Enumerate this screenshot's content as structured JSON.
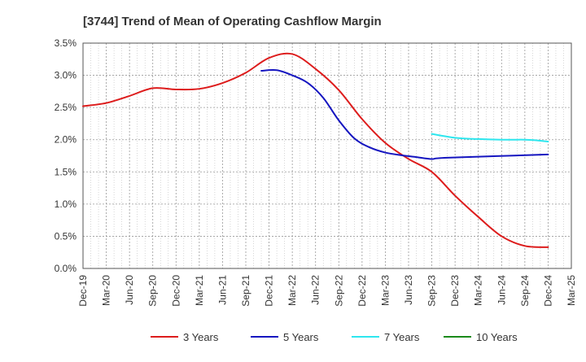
{
  "chart_data": {
    "type": "line",
    "title": "[3744]  Trend of Mean of Operating Cashflow Margin",
    "xlabel": "",
    "ylabel": "",
    "ylim": [
      0,
      3.5
    ],
    "y_ticks": [
      0,
      0.5,
      1.0,
      1.5,
      2.0,
      2.5,
      3.0,
      3.5
    ],
    "y_tick_labels": [
      "0.0%",
      "0.5%",
      "1.0%",
      "1.5%",
      "2.0%",
      "2.5%",
      "3.0%",
      "3.5%"
    ],
    "x_tick_labels": [
      "Dec-19",
      "Mar-20",
      "Jun-20",
      "Sep-20",
      "Dec-20",
      "Mar-21",
      "Jun-21",
      "Sep-21",
      "Dec-21",
      "Mar-22",
      "Jun-22",
      "Sep-22",
      "Dec-22",
      "Mar-23",
      "Jun-23",
      "Sep-23",
      "Dec-23",
      "Mar-24",
      "Jun-24",
      "Sep-24",
      "Dec-24",
      "Mar-25"
    ],
    "grid": true,
    "legend_position": "bottom",
    "series": [
      {
        "name": "3 Years",
        "color": "#dd1c1c",
        "start_index": 0,
        "values": [
          2.52,
          2.57,
          2.68,
          2.8,
          2.78,
          2.79,
          2.88,
          3.04,
          3.27,
          3.33,
          3.1,
          2.77,
          2.32,
          1.95,
          1.7,
          1.5,
          1.13,
          0.8,
          0.5,
          0.35,
          0.33
        ]
      },
      {
        "name": "5 Years",
        "color": "#1515c0",
        "start_index": 7.67,
        "values": [
          3.07,
          3.08,
          3.0,
          2.88,
          2.65,
          2.3,
          2.02,
          1.88,
          1.8,
          1.76,
          1.73,
          1.7,
          1.72,
          1.77
        ],
        "x_index": [
          7.67,
          8.33,
          9.0,
          9.67,
          10.33,
          11.0,
          11.67,
          12.33,
          13.0,
          13.67,
          14.33,
          15.0,
          15.67,
          20.0
        ]
      },
      {
        "name": "7 Years",
        "color": "#2ee6ee",
        "start_index": 15,
        "values": [
          2.09,
          2.03,
          2.01,
          2.0,
          2.0,
          1.99,
          1.97
        ],
        "x_index": [
          15,
          16,
          17,
          18,
          19,
          19.5,
          20
        ]
      },
      {
        "name": "10 Years",
        "color": "#1a8a1a",
        "start_index": 0,
        "values": []
      }
    ]
  }
}
